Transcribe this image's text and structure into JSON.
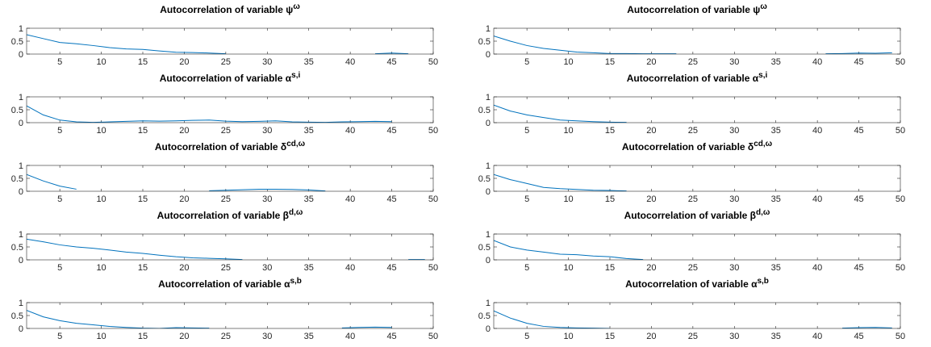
{
  "chart_data": [
    {
      "type": "line",
      "title": "Autocorrelation of variable ψ",
      "title_sup": "ω",
      "x": [
        1,
        3,
        5,
        7,
        9,
        11,
        13,
        15,
        17,
        19,
        21,
        23,
        25,
        27,
        29,
        31,
        33,
        35,
        37,
        39,
        41,
        43,
        45,
        47,
        49
      ],
      "values": [
        0.75,
        0.6,
        0.45,
        0.4,
        0.33,
        0.25,
        0.2,
        0.18,
        0.12,
        0.07,
        0.06,
        0.04,
        0.01,
        null,
        null,
        null,
        null,
        null,
        null,
        null,
        null,
        0.01,
        0.04,
        0.01,
        null
      ],
      "color": "#0072bd",
      "xlim": [
        1,
        50
      ],
      "ylim": [
        0,
        1
      ],
      "xticks": [
        5,
        10,
        15,
        20,
        25,
        30,
        35,
        40,
        45,
        50
      ],
      "yticks": [
        0,
        0.5,
        1
      ]
    },
    {
      "type": "line",
      "title": "Autocorrelation of variable ψ",
      "title_sup": "ω",
      "x": [
        1,
        3,
        5,
        7,
        9,
        11,
        13,
        15,
        17,
        19,
        21,
        23,
        25,
        27,
        29,
        31,
        33,
        35,
        37,
        39,
        41,
        43,
        45,
        47,
        49
      ],
      "values": [
        0.7,
        0.5,
        0.33,
        0.22,
        0.15,
        0.08,
        0.05,
        0.02,
        0.02,
        0.01,
        0.01,
        0.01,
        null,
        null,
        null,
        null,
        null,
        null,
        null,
        null,
        0.01,
        0.02,
        0.04,
        0.03,
        0.05
      ],
      "color": "#0072bd",
      "xlim": [
        1,
        50
      ],
      "ylim": [
        0,
        1
      ],
      "xticks": [
        5,
        10,
        15,
        20,
        25,
        30,
        35,
        40,
        45,
        50
      ],
      "yticks": [
        0,
        0.5,
        1
      ]
    },
    {
      "type": "line",
      "title": "Autocorrelation of variable α",
      "title_sup": "s,i",
      "x": [
        1,
        3,
        5,
        7,
        9,
        11,
        13,
        15,
        17,
        19,
        21,
        23,
        25,
        27,
        29,
        31,
        33,
        35,
        37,
        39,
        41,
        43,
        45,
        47,
        49
      ],
      "values": [
        0.65,
        0.3,
        0.1,
        0.03,
        0.01,
        0.03,
        0.05,
        0.07,
        0.06,
        0.07,
        0.09,
        0.1,
        0.06,
        0.04,
        0.05,
        0.07,
        0.03,
        0.02,
        0.01,
        0.03,
        0.04,
        0.05,
        0.04,
        null,
        null
      ],
      "color": "#0072bd",
      "xlim": [
        1,
        50
      ],
      "ylim": [
        0,
        1
      ],
      "xticks": [
        5,
        10,
        15,
        20,
        25,
        30,
        35,
        40,
        45,
        50
      ],
      "yticks": [
        0,
        0.5,
        1
      ]
    },
    {
      "type": "line",
      "title": "Autocorrelation of variable α",
      "title_sup": "s,i",
      "x": [
        1,
        3,
        5,
        7,
        9,
        11,
        13,
        15,
        17,
        19,
        21,
        23,
        25,
        27,
        29,
        31,
        33,
        35,
        37,
        39,
        41,
        43,
        45,
        47,
        49
      ],
      "values": [
        0.68,
        0.45,
        0.3,
        0.2,
        0.1,
        0.07,
        0.04,
        0.02,
        0.01,
        null,
        null,
        null,
        null,
        null,
        null,
        null,
        null,
        null,
        null,
        null,
        null,
        null,
        null,
        null,
        null
      ],
      "color": "#0072bd",
      "xlim": [
        1,
        50
      ],
      "ylim": [
        0,
        1
      ],
      "xticks": [
        5,
        10,
        15,
        20,
        25,
        30,
        35,
        40,
        45,
        50
      ],
      "yticks": [
        0,
        0.5,
        1
      ]
    },
    {
      "type": "line",
      "title": "Autocorrelation of variable δ",
      "title_sup": "cd,ω",
      "x": [
        1,
        3,
        5,
        7,
        9,
        11,
        13,
        15,
        17,
        19,
        21,
        23,
        25,
        27,
        29,
        31,
        33,
        35,
        37,
        39,
        41,
        43,
        45,
        47,
        49
      ],
      "values": [
        0.65,
        0.4,
        0.2,
        0.08,
        null,
        null,
        null,
        null,
        null,
        null,
        null,
        0.02,
        0.04,
        0.06,
        0.08,
        0.08,
        0.07,
        0.05,
        0.01,
        null,
        null,
        null,
        null,
        null,
        null
      ],
      "color": "#0072bd",
      "xlim": [
        1,
        50
      ],
      "ylim": [
        0,
        1
      ],
      "xticks": [
        5,
        10,
        15,
        20,
        25,
        30,
        35,
        40,
        45,
        50
      ],
      "yticks": [
        0,
        0.5,
        1
      ]
    },
    {
      "type": "line",
      "title": "Autocorrelation of variable δ",
      "title_sup": "cd,ω",
      "x": [
        1,
        3,
        5,
        7,
        9,
        11,
        13,
        15,
        17,
        19,
        21,
        23,
        25,
        27,
        29,
        31,
        33,
        35,
        37,
        39,
        41,
        43,
        45,
        47,
        49
      ],
      "values": [
        0.65,
        0.45,
        0.3,
        0.15,
        0.1,
        0.07,
        0.04,
        0.03,
        0.01,
        null,
        null,
        null,
        null,
        null,
        null,
        null,
        null,
        null,
        null,
        null,
        null,
        null,
        null,
        null,
        null
      ],
      "color": "#0072bd",
      "xlim": [
        1,
        50
      ],
      "ylim": [
        0,
        1
      ],
      "xticks": [
        5,
        10,
        15,
        20,
        25,
        30,
        35,
        40,
        45,
        50
      ],
      "yticks": [
        0,
        0.5,
        1
      ]
    },
    {
      "type": "line",
      "title": "Autocorrelation of variable β",
      "title_sup": "d,ω",
      "x": [
        1,
        3,
        5,
        7,
        9,
        11,
        13,
        15,
        17,
        19,
        21,
        23,
        25,
        27,
        29,
        31,
        33,
        35,
        37,
        39,
        41,
        43,
        45,
        47,
        49
      ],
      "values": [
        0.8,
        0.7,
        0.58,
        0.5,
        0.45,
        0.38,
        0.3,
        0.25,
        0.18,
        0.12,
        0.08,
        0.06,
        0.04,
        0.01,
        null,
        null,
        null,
        null,
        null,
        null,
        null,
        null,
        null,
        0.01,
        0.01
      ],
      "color": "#0072bd",
      "xlim": [
        1,
        50
      ],
      "ylim": [
        0,
        1
      ],
      "xticks": [
        5,
        10,
        15,
        20,
        25,
        30,
        35,
        40,
        45,
        50
      ],
      "yticks": [
        0,
        0.5,
        1
      ]
    },
    {
      "type": "line",
      "title": "Autocorrelation of variable β",
      "title_sup": "d,ω",
      "x": [
        1,
        3,
        5,
        7,
        9,
        11,
        13,
        15,
        17,
        19,
        21,
        23,
        25,
        27,
        29,
        31,
        33,
        35,
        37,
        39,
        41,
        43,
        45,
        47,
        49
      ],
      "values": [
        0.75,
        0.5,
        0.38,
        0.3,
        0.22,
        0.2,
        0.15,
        0.12,
        0.05,
        0.01,
        null,
        null,
        null,
        null,
        null,
        null,
        null,
        null,
        null,
        null,
        null,
        null,
        null,
        null,
        null
      ],
      "color": "#0072bd",
      "xlim": [
        1,
        50
      ],
      "ylim": [
        0,
        1
      ],
      "xticks": [
        5,
        10,
        15,
        20,
        25,
        30,
        35,
        40,
        45,
        50
      ],
      "yticks": [
        0,
        0.5,
        1
      ]
    },
    {
      "type": "line",
      "title": "Autocorrelation of variable α",
      "title_sup": "s,b",
      "x": [
        1,
        3,
        5,
        7,
        9,
        11,
        13,
        15,
        17,
        19,
        21,
        23,
        25,
        27,
        29,
        31,
        33,
        35,
        37,
        39,
        41,
        43,
        45,
        47,
        49
      ],
      "values": [
        0.7,
        0.45,
        0.3,
        0.2,
        0.14,
        0.08,
        0.04,
        0.01,
        0,
        0.03,
        0.02,
        0.01,
        null,
        null,
        null,
        null,
        null,
        null,
        null,
        0.02,
        0.04,
        0.05,
        0.04,
        null,
        null
      ],
      "color": "#0072bd",
      "xlim": [
        1,
        50
      ],
      "ylim": [
        0,
        1
      ],
      "xticks": [
        5,
        10,
        15,
        20,
        25,
        30,
        35,
        40,
        45,
        50
      ],
      "yticks": [
        0,
        0.5,
        1
      ]
    },
    {
      "type": "line",
      "title": "Autocorrelation of variable α",
      "title_sup": "s,b",
      "x": [
        1,
        3,
        5,
        7,
        9,
        11,
        13,
        15,
        17,
        19,
        21,
        23,
        25,
        27,
        29,
        31,
        33,
        35,
        37,
        39,
        41,
        43,
        45,
        47,
        49
      ],
      "values": [
        0.68,
        0.4,
        0.2,
        0.08,
        0.04,
        0.02,
        0.01,
        0,
        null,
        null,
        null,
        null,
        null,
        null,
        null,
        null,
        null,
        null,
        null,
        null,
        null,
        0.01,
        0.03,
        0.04,
        0.02
      ],
      "color": "#0072bd",
      "xlim": [
        1,
        50
      ],
      "ylim": [
        0,
        1
      ],
      "xticks": [
        5,
        10,
        15,
        20,
        25,
        30,
        35,
        40,
        45,
        50
      ],
      "yticks": [
        0,
        0.5,
        1
      ]
    }
  ]
}
